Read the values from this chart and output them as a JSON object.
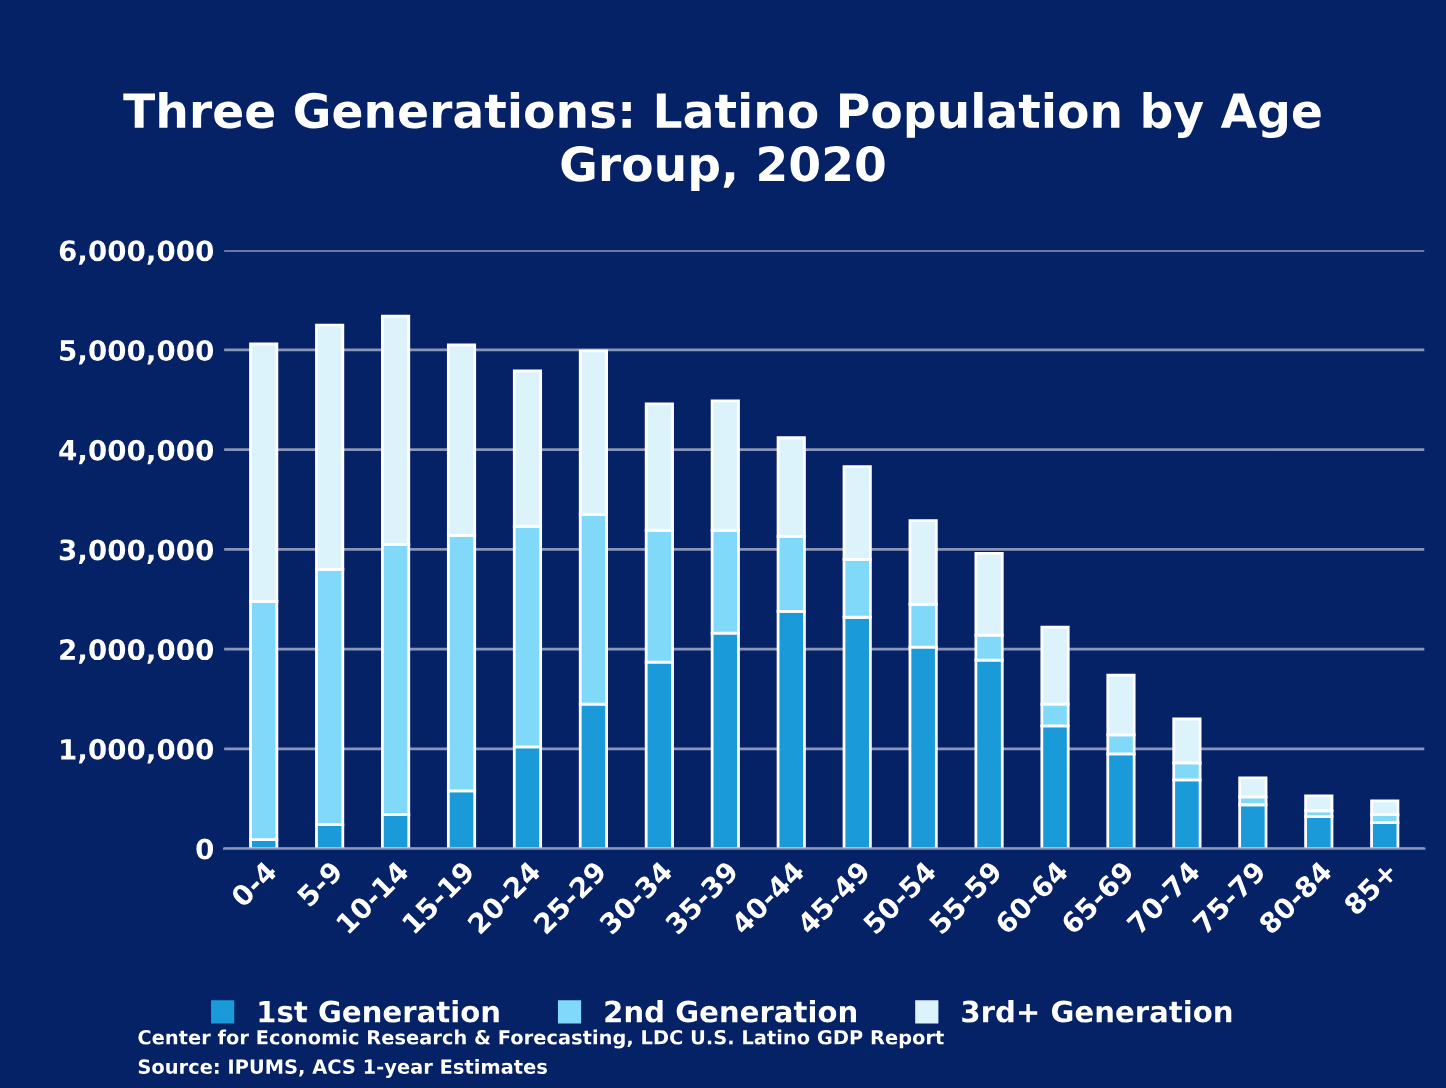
{
  "chart_data": {
    "type": "bar",
    "title": "Three Generations: Latino Population by Age Group, 2020",
    "categories": [
      "0-4",
      "5-9",
      "10-14",
      "15-19",
      "20-24",
      "25-29",
      "30-34",
      "35-39",
      "40-44",
      "45-49",
      "50-54",
      "55-59",
      "60-64",
      "65-69",
      "70-74",
      "75-79",
      "80-84",
      "85+"
    ],
    "stacked": true,
    "series": [
      {
        "name": "1st Generation",
        "color": "#1b9ad9",
        "values": [
          90000,
          240000,
          340000,
          580000,
          1020000,
          1450000,
          1870000,
          2160000,
          2380000,
          2320000,
          2020000,
          1890000,
          1230000,
          950000,
          690000,
          440000,
          320000,
          260000
        ]
      },
      {
        "name": "2nd Generation",
        "color": "#80d9f8",
        "values": [
          2390000,
          2560000,
          2710000,
          2560000,
          2210000,
          1900000,
          1320000,
          1030000,
          750000,
          580000,
          430000,
          250000,
          220000,
          190000,
          170000,
          80000,
          60000,
          80000
        ]
      },
      {
        "name": "3rd+ Generation",
        "color": "#ddf3fc",
        "values": [
          2580000,
          2450000,
          2290000,
          1910000,
          1560000,
          1640000,
          1270000,
          1300000,
          990000,
          930000,
          840000,
          820000,
          770000,
          600000,
          440000,
          190000,
          150000,
          140000
        ]
      }
    ],
    "ylim": [
      0,
      6000000
    ],
    "yticks": [
      {
        "value": 0,
        "label": "0"
      },
      {
        "value": 1000000,
        "label": "1,000,000"
      },
      {
        "value": 2000000,
        "label": "2,000,000"
      },
      {
        "value": 3000000,
        "label": "3,000,000"
      },
      {
        "value": 4000000,
        "label": "4,000,000"
      },
      {
        "value": 5000000,
        "label": "5,000,000"
      },
      {
        "value": 6000000,
        "label": "6,000,000"
      }
    ],
    "grid": "y",
    "legend": "bottom",
    "annotations": [
      "Center for Economic Research & Forecasting, LDC U.S. Latino GDP Report",
      "Source: IPUMS, ACS 1-year Estimates"
    ]
  }
}
